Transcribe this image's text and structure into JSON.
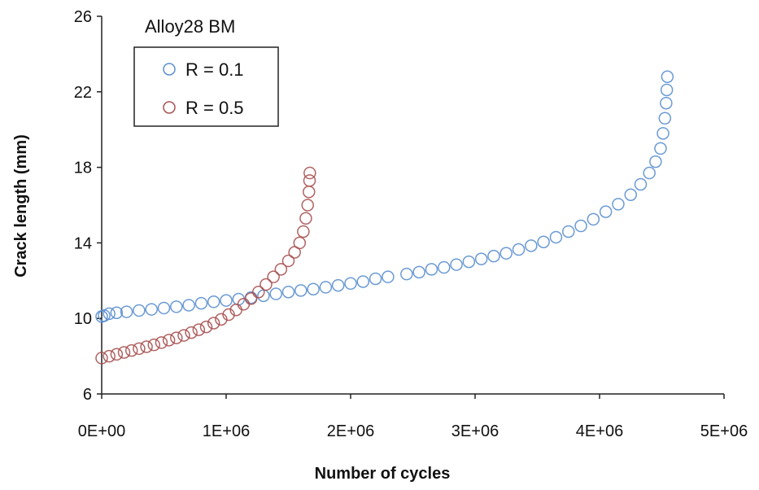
{
  "chart_data": {
    "type": "scatter",
    "title": "Alloy28 BM",
    "xlabel": "Number of cycles",
    "ylabel": "Crack length (mm)",
    "xlim": [
      0,
      5000000
    ],
    "ylim": [
      6,
      26
    ],
    "x_ticks": [
      0,
      1000000,
      2000000,
      3000000,
      4000000,
      5000000
    ],
    "x_tick_labels": [
      "0E+00",
      "1E+06",
      "2E+06",
      "3E+06",
      "4E+06",
      "5E+06"
    ],
    "y_ticks": [
      6,
      10,
      14,
      18,
      22,
      26
    ],
    "y_tick_labels": [
      "6",
      "10",
      "14",
      "18",
      "22",
      "26"
    ],
    "grid": false,
    "legend_position": "top-left",
    "marker": "open-circle",
    "series": [
      {
        "name": "R = 0.1",
        "color": "#5b8fd0",
        "points": [
          [
            0,
            10.1
          ],
          [
            20000,
            10.15
          ],
          [
            60000,
            10.25
          ],
          [
            120000,
            10.3
          ],
          [
            200000,
            10.35
          ],
          [
            300000,
            10.42
          ],
          [
            400000,
            10.48
          ],
          [
            500000,
            10.55
          ],
          [
            600000,
            10.62
          ],
          [
            700000,
            10.7
          ],
          [
            800000,
            10.8
          ],
          [
            900000,
            10.88
          ],
          [
            1000000,
            10.95
          ],
          [
            1100000,
            11.02
          ],
          [
            1200000,
            11.1
          ],
          [
            1300000,
            11.2
          ],
          [
            1400000,
            11.3
          ],
          [
            1500000,
            11.4
          ],
          [
            1600000,
            11.48
          ],
          [
            1700000,
            11.55
          ],
          [
            1800000,
            11.65
          ],
          [
            1900000,
            11.75
          ],
          [
            2000000,
            11.85
          ],
          [
            2100000,
            11.95
          ],
          [
            2200000,
            12.1
          ],
          [
            2300000,
            12.2
          ],
          [
            2450000,
            12.35
          ],
          [
            2550000,
            12.45
          ],
          [
            2650000,
            12.6
          ],
          [
            2750000,
            12.7
          ],
          [
            2850000,
            12.85
          ],
          [
            2950000,
            13.0
          ],
          [
            3050000,
            13.15
          ],
          [
            3150000,
            13.3
          ],
          [
            3250000,
            13.45
          ],
          [
            3350000,
            13.65
          ],
          [
            3450000,
            13.85
          ],
          [
            3550000,
            14.05
          ],
          [
            3650000,
            14.3
          ],
          [
            3750000,
            14.6
          ],
          [
            3850000,
            14.9
          ],
          [
            3950000,
            15.25
          ],
          [
            4050000,
            15.65
          ],
          [
            4150000,
            16.05
          ],
          [
            4250000,
            16.55
          ],
          [
            4330000,
            17.1
          ],
          [
            4400000,
            17.7
          ],
          [
            4450000,
            18.3
          ],
          [
            4490000,
            19.0
          ],
          [
            4510000,
            19.8
          ],
          [
            4525000,
            20.6
          ],
          [
            4535000,
            21.4
          ],
          [
            4540000,
            22.1
          ],
          [
            4545000,
            22.8
          ]
        ]
      },
      {
        "name": "R = 0.5",
        "color": "#a85252",
        "points": [
          [
            0,
            7.9
          ],
          [
            60000,
            8.0
          ],
          [
            120000,
            8.1
          ],
          [
            180000,
            8.2
          ],
          [
            240000,
            8.3
          ],
          [
            300000,
            8.4
          ],
          [
            360000,
            8.5
          ],
          [
            420000,
            8.6
          ],
          [
            480000,
            8.72
          ],
          [
            540000,
            8.85
          ],
          [
            600000,
            8.97
          ],
          [
            660000,
            9.1
          ],
          [
            720000,
            9.25
          ],
          [
            780000,
            9.4
          ],
          [
            840000,
            9.55
          ],
          [
            900000,
            9.75
          ],
          [
            960000,
            9.95
          ],
          [
            1020000,
            10.2
          ],
          [
            1080000,
            10.45
          ],
          [
            1140000,
            10.75
          ],
          [
            1200000,
            11.05
          ],
          [
            1260000,
            11.4
          ],
          [
            1320000,
            11.8
          ],
          [
            1380000,
            12.2
          ],
          [
            1440000,
            12.6
          ],
          [
            1500000,
            13.05
          ],
          [
            1550000,
            13.5
          ],
          [
            1590000,
            14.0
          ],
          [
            1620000,
            14.6
          ],
          [
            1640000,
            15.3
          ],
          [
            1655000,
            16.0
          ],
          [
            1665000,
            16.7
          ],
          [
            1670000,
            17.3
          ],
          [
            1672000,
            17.7
          ]
        ]
      }
    ]
  }
}
